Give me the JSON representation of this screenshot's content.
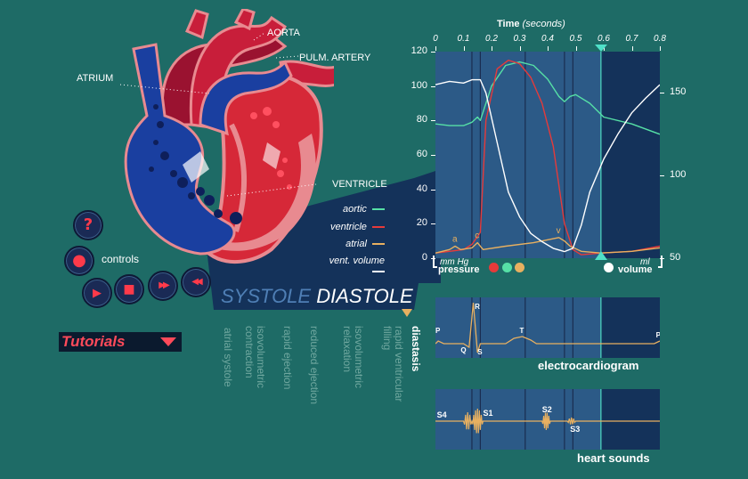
{
  "heart_labels": {
    "aorta": "AORTA",
    "pulm_artery": "PULM. ARTERY",
    "atrium": "ATRIUM",
    "ventricle": "VENTRICLE"
  },
  "controls": {
    "label": "controls",
    "help": "?",
    "record": "●",
    "play": "▶",
    "stop": "■",
    "forward": "▶▶",
    "rewind": "◀◀"
  },
  "tutorials": {
    "label": "Tutorials"
  },
  "phase_header": {
    "systole": "SYSTOLE",
    "diastole": "DIASTOLE"
  },
  "phases": [
    "atrial systole",
    "isovolumetric contraction",
    "rapid ejection",
    "reduced ejection",
    "isovolumetric relaxation",
    "rapid ventricular filling",
    "diastasis"
  ],
  "colors": {
    "background": "#1e6b66",
    "panel": "#2c5a87",
    "panel_dark": "#14325a",
    "aortic": "#56e0a6",
    "ventricle": "#e63a3a",
    "atrial": "#e8b060",
    "volume": "#ffffff",
    "ecg": "#e8b060",
    "marker": "#4fe0c8"
  },
  "chart_data": {
    "type": "line",
    "xlabel": "Time",
    "xlabel_unit": "(seconds)",
    "x_ticks": [
      "0",
      "0.1",
      "0.2",
      "0.3",
      "0.4",
      "0.5",
      "0.6",
      "0.7",
      "0.8"
    ],
    "xlim": [
      0,
      0.8
    ],
    "ylabel_left": "mm Hg",
    "ylabel_left_title": "pressure",
    "ylim_left": [
      0,
      120
    ],
    "y_ticks_left": [
      "0",
      "20",
      "40",
      "60",
      "80",
      "100",
      "120"
    ],
    "ylabel_right": "ml",
    "ylabel_right_title": "volume",
    "ylim_right": [
      50,
      175
    ],
    "y_ticks_right": [
      "50",
      "100",
      "150"
    ],
    "marker_time": 0.59,
    "phase_boundaries": [
      0.13,
      0.16,
      0.32,
      0.46,
      0.49,
      0.59
    ],
    "series": [
      {
        "name": "aortic",
        "axis": "left",
        "x": [
          0,
          0.05,
          0.1,
          0.13,
          0.15,
          0.16,
          0.2,
          0.25,
          0.3,
          0.35,
          0.4,
          0.44,
          0.46,
          0.48,
          0.5,
          0.55,
          0.6,
          0.7,
          0.8
        ],
        "y": [
          78,
          77,
          77,
          79,
          82,
          80,
          100,
          112,
          114,
          112,
          104,
          94,
          91,
          94,
          95,
          90,
          82,
          78,
          72
        ]
      },
      {
        "name": "ventricle",
        "axis": "left",
        "x": [
          0,
          0.05,
          0.1,
          0.13,
          0.16,
          0.18,
          0.22,
          0.26,
          0.3,
          0.34,
          0.38,
          0.42,
          0.46,
          0.49,
          0.52,
          0.59,
          0.7,
          0.8
        ],
        "y": [
          3,
          4,
          5,
          8,
          15,
          80,
          110,
          115,
          113,
          105,
          90,
          65,
          20,
          5,
          2,
          3,
          4,
          7
        ]
      },
      {
        "name": "atrial",
        "axis": "left",
        "x": [
          0,
          0.05,
          0.07,
          0.09,
          0.13,
          0.15,
          0.17,
          0.25,
          0.35,
          0.44,
          0.46,
          0.48,
          0.52,
          0.59,
          0.7,
          0.8
        ],
        "y": [
          3,
          5,
          7,
          5,
          6,
          9,
          5,
          7,
          9,
          12,
          10,
          7,
          4,
          3,
          4,
          6
        ]
      },
      {
        "name": "vent. volume",
        "axis": "right",
        "x": [
          0,
          0.05,
          0.1,
          0.13,
          0.16,
          0.18,
          0.22,
          0.26,
          0.3,
          0.34,
          0.38,
          0.42,
          0.46,
          0.49,
          0.52,
          0.55,
          0.6,
          0.65,
          0.7,
          0.75,
          0.8
        ],
        "y": [
          155,
          157,
          156,
          158,
          158,
          150,
          120,
          90,
          75,
          65,
          60,
          56,
          54,
          56,
          70,
          90,
          110,
          125,
          138,
          147,
          155
        ]
      }
    ],
    "wave_labels": {
      "a": "a",
      "c": "c",
      "v": "v"
    },
    "legend_labels": {
      "aortic": "aortic",
      "ventricle": "ventricle",
      "atrial": "atrial",
      "volume": "vent. volume"
    }
  },
  "ecg": {
    "title": "electrocardiogram",
    "labels": {
      "P1": "P",
      "R": "R",
      "Q": "Q",
      "S": "S",
      "T": "T",
      "P2": "P"
    }
  },
  "heart_sounds": {
    "title": "heart sounds",
    "labels": {
      "S4": "S4",
      "S1": "S1",
      "S2": "S2",
      "S3": "S3"
    }
  }
}
